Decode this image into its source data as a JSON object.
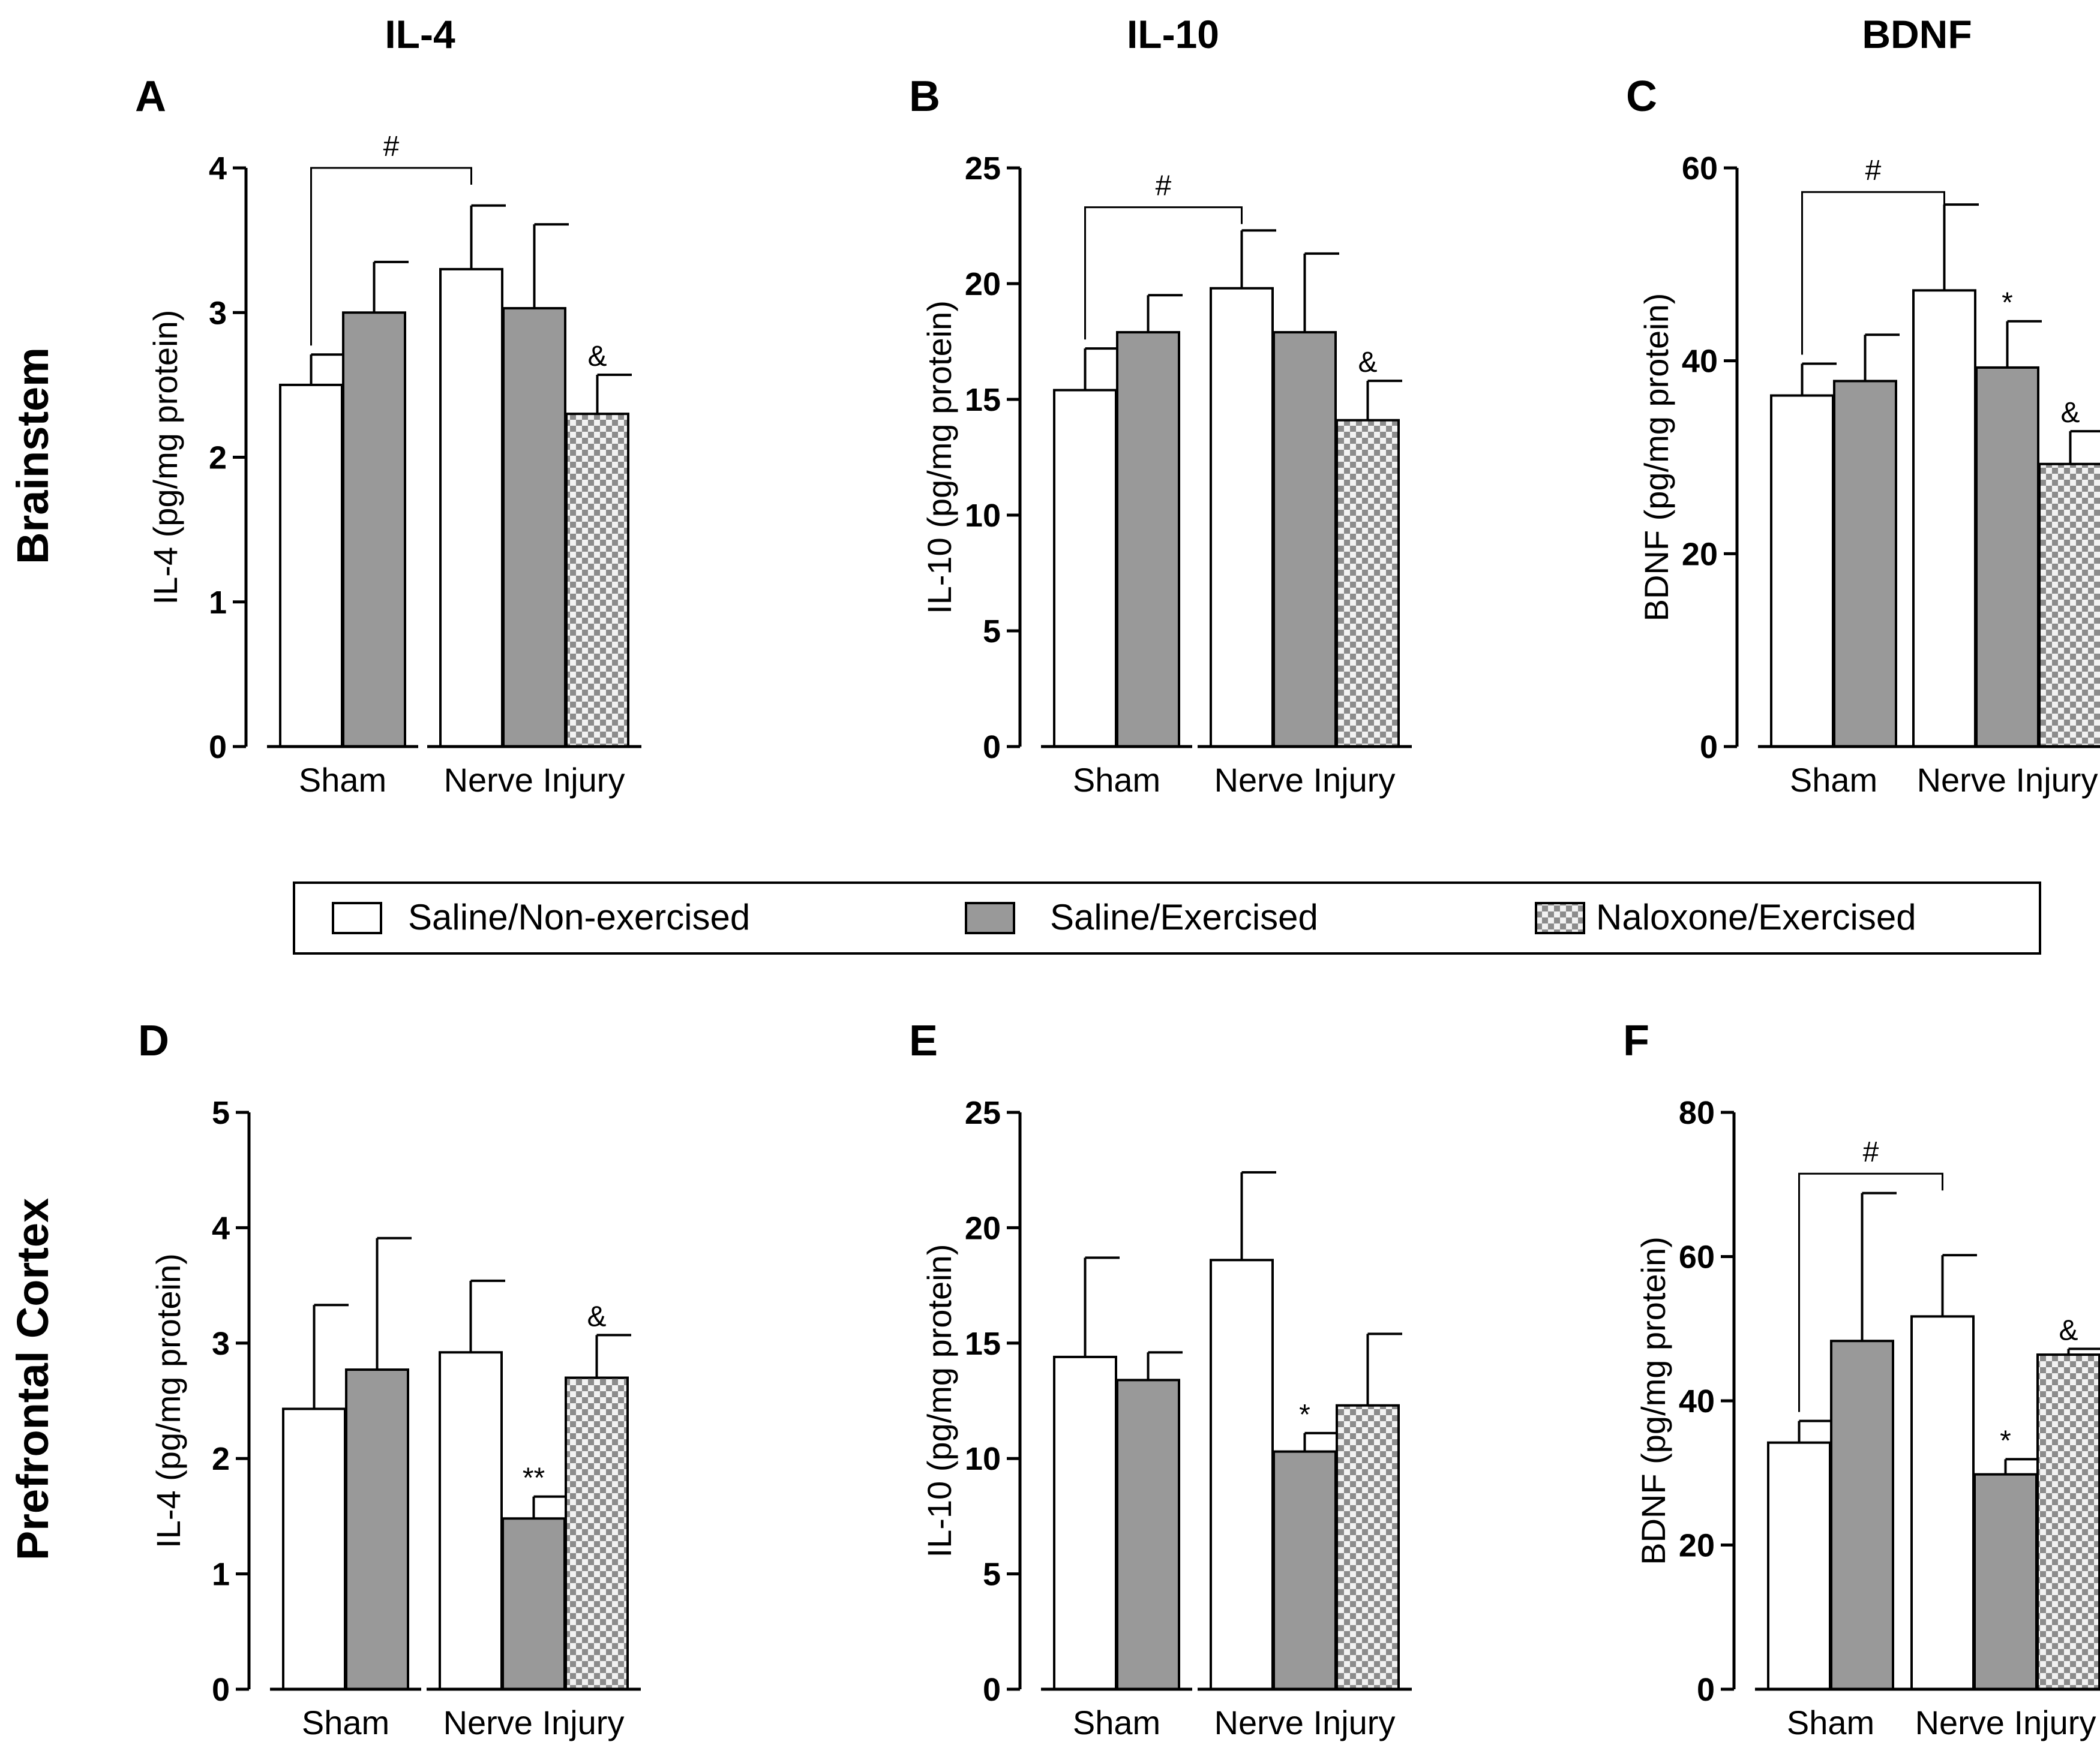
{
  "column_titles": [
    "IL-4",
    "IL-10",
    "BDNF"
  ],
  "row_titles": [
    "Brainstem",
    "Prefrontal Cortex"
  ],
  "legend": {
    "items": [
      {
        "label": "Saline/Non-exercised",
        "fill": "white"
      },
      {
        "label": "Saline/Exercised",
        "fill": "gray"
      },
      {
        "label": "Naloxone/Exercised",
        "fill": "checker"
      }
    ]
  },
  "colors": {
    "gray_bar": "#999999",
    "checker_dark": "#8c8c8c",
    "checker_light": "#f2f2f2",
    "axis": "#000000"
  },
  "chart_data": [
    {
      "panel": "A",
      "type": "bar",
      "title": "",
      "ylabel": "IL-4 (pg/mg protein)",
      "xlabel": "",
      "ylim": [
        0,
        4
      ],
      "yticks": [
        "0",
        "1",
        "2",
        "3",
        "4"
      ],
      "groups": [
        "Sham",
        "Nerve Injury"
      ],
      "series": [
        {
          "name": "Saline/Non-exercised",
          "values": [
            2.5,
            3.3
          ],
          "errors": [
            0.21,
            0.44
          ]
        },
        {
          "name": "Saline/Exercised",
          "values": [
            3.0,
            3.03
          ],
          "errors": [
            0.35,
            0.58
          ]
        },
        {
          "name": "Naloxone/Exercised",
          "values": [
            null,
            2.3
          ],
          "errors": [
            null,
            0.27
          ]
        }
      ],
      "annotations": [
        {
          "text": "#",
          "type": "bracket",
          "from_group": 0,
          "to_group": 1,
          "y": 4.0
        },
        {
          "text": "&",
          "group": 1,
          "series": 2
        }
      ]
    },
    {
      "panel": "B",
      "type": "bar",
      "title": "",
      "ylabel": "IL-10 (pg/mg protein)",
      "xlabel": "",
      "ylim": [
        0,
        25
      ],
      "yticks": [
        "0",
        "5",
        "10",
        "15",
        "20",
        "25"
      ],
      "groups": [
        "Sham",
        "Nerve Injury"
      ],
      "series": [
        {
          "name": "Saline/Non-exercised",
          "values": [
            15.4,
            19.8
          ],
          "errors": [
            1.8,
            2.5
          ]
        },
        {
          "name": "Saline/Exercised",
          "values": [
            17.9,
            17.9
          ],
          "errors": [
            1.6,
            3.4
          ]
        },
        {
          "name": "Naloxone/Exercised",
          "values": [
            null,
            14.1
          ],
          "errors": [
            null,
            1.7
          ]
        }
      ],
      "annotations": [
        {
          "text": "#",
          "type": "bracket",
          "from_group": 0,
          "to_group": 1,
          "y": 23.3
        },
        {
          "text": "&",
          "group": 1,
          "series": 2
        }
      ]
    },
    {
      "panel": "C",
      "type": "bar",
      "title": "",
      "ylabel": "BDNF (pg/mg protein)",
      "xlabel": "",
      "ylim": [
        0,
        60
      ],
      "yticks": [
        "0",
        "20",
        "40",
        "60"
      ],
      "groups": [
        "Sham",
        "Nerve Injury"
      ],
      "series": [
        {
          "name": "Saline/Non-exercised",
          "values": [
            36.4,
            47.3
          ],
          "errors": [
            3.3,
            8.9
          ]
        },
        {
          "name": "Saline/Exercised",
          "values": [
            37.9,
            39.3
          ],
          "errors": [
            4.8,
            4.8
          ]
        },
        {
          "name": "Naloxone/Exercised",
          "values": [
            null,
            29.3
          ],
          "errors": [
            null,
            3.4
          ]
        }
      ],
      "annotations": [
        {
          "text": "#",
          "type": "bracket",
          "from_group": 0,
          "to_group": 1,
          "y": 57.5
        },
        {
          "text": "*",
          "group": 1,
          "series": 1
        },
        {
          "text": "&",
          "group": 1,
          "series": 2
        }
      ]
    },
    {
      "panel": "D",
      "type": "bar",
      "title": "",
      "ylabel": "IL-4 (pg/mg protein)",
      "xlabel": "",
      "ylim": [
        0,
        5
      ],
      "yticks": [
        "0",
        "1",
        "2",
        "3",
        "4",
        "5"
      ],
      "groups": [
        "Sham",
        "Nerve Injury"
      ],
      "series": [
        {
          "name": "Saline/Non-exercised",
          "values": [
            2.43,
            2.92
          ],
          "errors": [
            0.9,
            0.62
          ]
        },
        {
          "name": "Saline/Exercised",
          "values": [
            2.77,
            1.48
          ],
          "errors": [
            1.14,
            0.19
          ]
        },
        {
          "name": "Naloxone/Exercised",
          "values": [
            null,
            2.7
          ],
          "errors": [
            null,
            0.37
          ]
        }
      ],
      "annotations": [
        {
          "text": "**",
          "group": 1,
          "series": 1
        },
        {
          "text": "&",
          "group": 1,
          "series": 2
        }
      ]
    },
    {
      "panel": "E",
      "type": "bar",
      "title": "",
      "ylabel": "IL-10 (pg/mg protein)",
      "xlabel": "",
      "ylim": [
        0,
        25
      ],
      "yticks": [
        "0",
        "5",
        "10",
        "15",
        "20",
        "25"
      ],
      "groups": [
        "Sham",
        "Nerve Injury"
      ],
      "series": [
        {
          "name": "Saline/Non-exercised",
          "values": [
            14.4,
            18.6
          ],
          "errors": [
            4.3,
            3.8
          ]
        },
        {
          "name": "Saline/Exercised",
          "values": [
            13.4,
            10.3
          ],
          "errors": [
            1.2,
            0.8
          ]
        },
        {
          "name": "Naloxone/Exercised",
          "values": [
            null,
            12.3
          ],
          "errors": [
            null,
            3.1
          ]
        }
      ],
      "annotations": [
        {
          "text": "*",
          "group": 1,
          "series": 1
        }
      ]
    },
    {
      "panel": "F",
      "type": "bar",
      "title": "",
      "ylabel": "BDNF (pg/mg protein)",
      "xlabel": "",
      "ylim": [
        0,
        80
      ],
      "yticks": [
        "0",
        "20",
        "40",
        "60",
        "80"
      ],
      "groups": [
        "Sham",
        "Nerve Injury"
      ],
      "series": [
        {
          "name": "Saline/Non-exercised",
          "values": [
            34.2,
            51.7
          ],
          "errors": [
            3.0,
            8.5
          ]
        },
        {
          "name": "Saline/Exercised",
          "values": [
            48.3,
            29.8
          ],
          "errors": [
            20.5,
            2.1
          ]
        },
        {
          "name": "Naloxone/Exercised",
          "values": [
            null,
            46.4
          ],
          "errors": [
            null,
            0.8
          ]
        }
      ],
      "annotations": [
        {
          "text": "#",
          "type": "bracket",
          "from_group": 0,
          "to_group": 1,
          "y": 71.5
        },
        {
          "text": "*",
          "group": 1,
          "series": 1
        },
        {
          "text": "&",
          "group": 1,
          "series": 2
        }
      ]
    }
  ]
}
